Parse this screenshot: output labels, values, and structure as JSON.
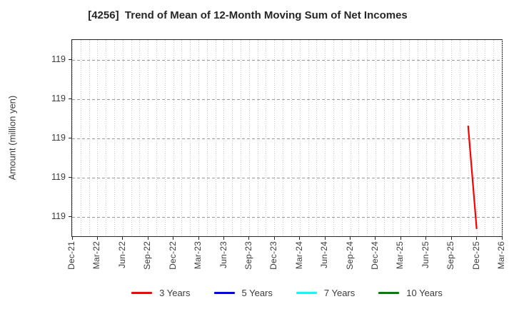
{
  "chart_data": {
    "type": "line",
    "title": "[4256]  Trend of Mean of 12-Month Moving Sum of Net Incomes",
    "ylabel": "Amount (million yen)",
    "x_start": "Dec-21",
    "x_end": "Mar-26",
    "x_tick_interval_months": 3,
    "x_minor_grid_interval_months": 1,
    "x_tick_labels": [
      "Dec-21",
      "Mar-22",
      "Jun-22",
      "Sep-22",
      "Dec-22",
      "Mar-23",
      "Jun-23",
      "Sep-23",
      "Dec-23",
      "Mar-24",
      "Jun-24",
      "Sep-24",
      "Dec-24",
      "Mar-25",
      "Jun-25",
      "Sep-25",
      "Dec-25",
      "Mar-26"
    ],
    "y_ticks": [
      {
        "value": 119.2,
        "label": "119"
      },
      {
        "value": 119.1,
        "label": "119"
      },
      {
        "value": 119.0,
        "label": "119"
      },
      {
        "value": 118.9,
        "label": "119"
      },
      {
        "value": 118.8,
        "label": "119"
      }
    ],
    "ylim": [
      118.75,
      119.25
    ],
    "grid": true,
    "legend_position": "bottom",
    "series": [
      {
        "name": "3 Years",
        "color": "#ff0000",
        "points": [
          {
            "month": "Nov-25",
            "value": 119.03
          },
          {
            "month": "Dec-25",
            "value": 118.77
          }
        ]
      },
      {
        "name": "5 Years",
        "color": "#0000ff",
        "points": []
      },
      {
        "name": "7 Years",
        "color": "#00ffff",
        "points": []
      },
      {
        "name": "10 Years",
        "color": "#008000",
        "points": []
      }
    ]
  }
}
